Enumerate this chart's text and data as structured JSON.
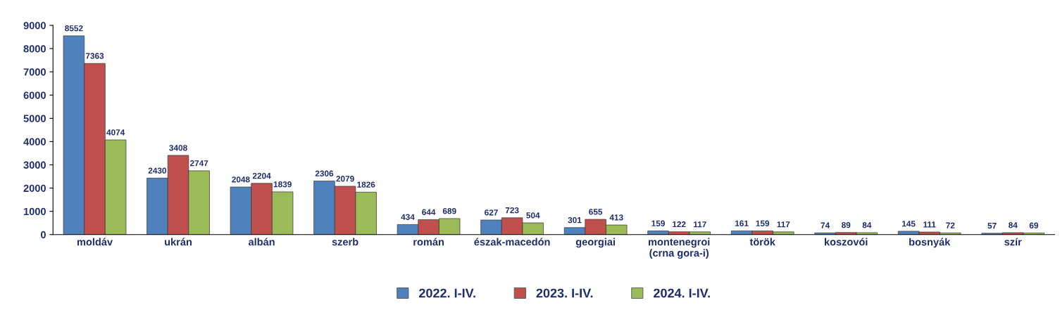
{
  "chart_data": {
    "type": "bar",
    "categories": [
      "moldáv",
      "ukrán",
      "albán",
      "szerb",
      "román",
      "észak-macedón",
      "georgiai",
      "montenegroi\n(crna gora-i)",
      "török",
      "koszovói",
      "bosnyák",
      "szír"
    ],
    "series": [
      {
        "name": "2022. I-IV.",
        "color": "#4f81bd",
        "values": [
          8552,
          2430,
          2048,
          2306,
          434,
          627,
          301,
          159,
          161,
          74,
          145,
          57
        ]
      },
      {
        "name": "2023. I-IV.",
        "color": "#c0504d",
        "values": [
          7363,
          3408,
          2204,
          2079,
          644,
          723,
          655,
          122,
          159,
          89,
          111,
          84
        ]
      },
      {
        "name": "2024. I-IV.",
        "color": "#9bbb59",
        "values": [
          4074,
          2747,
          1839,
          1826,
          689,
          504,
          413,
          117,
          117,
          84,
          72,
          69
        ]
      }
    ],
    "ylim": [
      0,
      9000
    ],
    "yticks": [
      0,
      1000,
      2000,
      3000,
      4000,
      5000,
      6000,
      7000,
      8000,
      9000
    ],
    "grid": false,
    "legend": "bottom",
    "data_labels": true
  }
}
